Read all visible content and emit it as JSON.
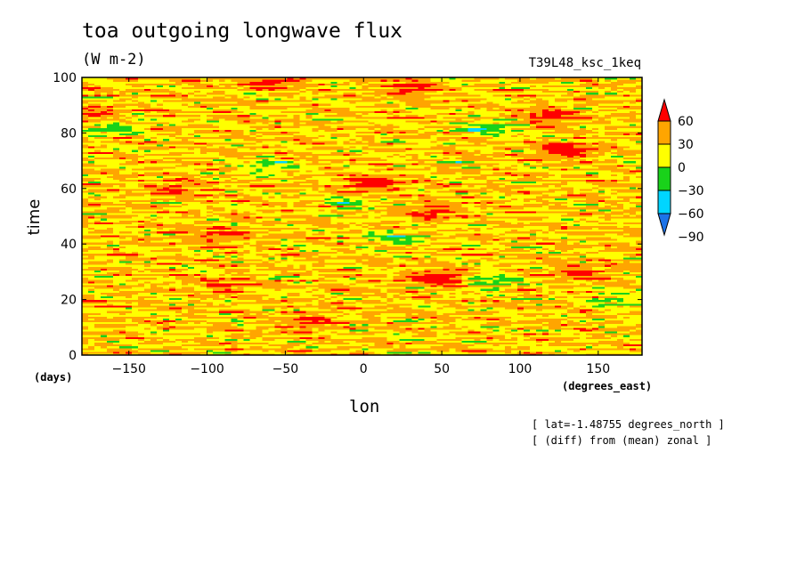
{
  "chart_data": {
    "type": "heatmap",
    "title": "toa outgoing longwave flux",
    "subtitle": "(W m-2)",
    "run_label": "T39L48_ksc_1keq",
    "xlabel": "lon",
    "ylabel": "time",
    "x_unit": "(degrees_east)",
    "y_unit": "(days)",
    "xlim": [
      -180,
      178
    ],
    "ylim": [
      0,
      100
    ],
    "x_ticks": [
      -150,
      -100,
      -50,
      0,
      50,
      100,
      150
    ],
    "y_ticks": [
      0,
      20,
      40,
      60,
      80,
      100
    ],
    "colorbar": {
      "levels": [
        -90,
        -60,
        -30,
        0,
        30,
        60
      ],
      "colors": [
        "#1c73e8",
        "#00d5ff",
        "#19d21a",
        "#ffff00",
        "#ffa500",
        "#ff0000"
      ]
    },
    "annotations": [
      "[ lat=-1.48755 degrees_north ]",
      "[ (diff) from (mean) zonal ]"
    ],
    "anomalies": [
      {
        "lon": 48,
        "time": 28,
        "value": 70
      },
      {
        "lon": 45,
        "time": 52,
        "value": 40
      },
      {
        "lon": 5,
        "time": 62,
        "value": 65
      },
      {
        "lon": 130,
        "time": 74,
        "value": 65
      },
      {
        "lon": 118,
        "time": 86,
        "value": 50
      },
      {
        "lon": 30,
        "time": 96,
        "value": 45
      },
      {
        "lon": -60,
        "time": 99,
        "value": 50
      },
      {
        "lon": -90,
        "time": 25,
        "value": 35
      },
      {
        "lon": -35,
        "time": 12,
        "value": 40
      },
      {
        "lon": -95,
        "time": 43,
        "value": 40
      },
      {
        "lon": 140,
        "time": 30,
        "value": 40
      },
      {
        "lon": -175,
        "time": 87,
        "value": 40
      },
      {
        "lon": -120,
        "time": 60,
        "value": 35
      },
      {
        "lon": 20,
        "time": 42,
        "value": -45
      },
      {
        "lon": -60,
        "time": 68,
        "value": -40
      },
      {
        "lon": 80,
        "time": 82,
        "value": -50
      },
      {
        "lon": -160,
        "time": 82,
        "value": -40
      },
      {
        "lon": 80,
        "time": 27,
        "value": -40
      },
      {
        "lon": 160,
        "time": 20,
        "value": -35
      },
      {
        "lon": -10,
        "time": 55,
        "value": -35
      }
    ]
  }
}
